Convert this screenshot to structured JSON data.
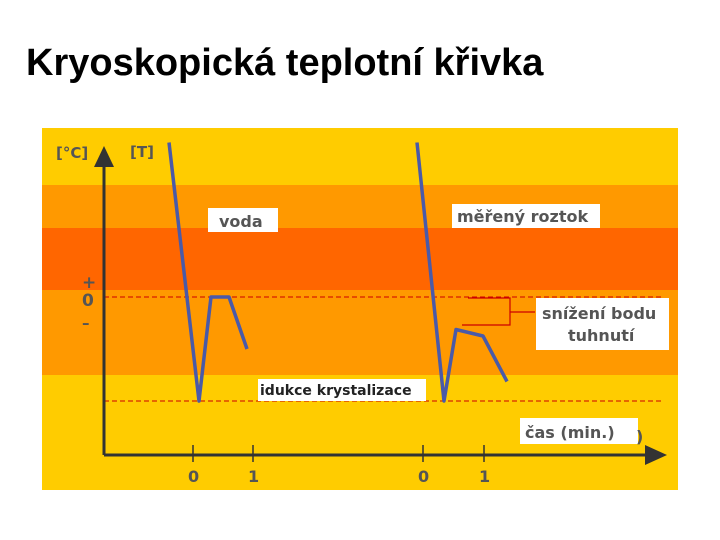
{
  "page_title": "Kryoskopická teplotní křivka",
  "colors": {
    "band_light": "#ffcc00",
    "band_mid": "#ff9900",
    "band_dark": "#ff6600",
    "curve": "#4a5aa8",
    "dashed": "#cc0000",
    "axis": "#333333",
    "text": "#555555"
  },
  "chart_data": {
    "type": "line",
    "title": "Kryoskopická teplotní křivka",
    "ylabel_unit": "[°C]",
    "ylabel_symbol": "[T]",
    "y_marks": {
      "plus": "+",
      "zero": "0",
      "minus": "–"
    },
    "xlabel": "čas (min.)",
    "xlabel_bracket": ")",
    "x_ticks_left": [
      "0",
      "1"
    ],
    "x_ticks_right": [
      "0",
      "1"
    ],
    "labels": {
      "water": "voda",
      "solution": "měřený roztok",
      "depression_line1": "snížení bodu",
      "depression_line2": "tuhnutí",
      "induction": "idukce krystalizace"
    },
    "series": [
      {
        "name": "voda",
        "x": [
          -0.4,
          0.1,
          0.3,
          0.6,
          0.9
        ],
        "y": [
          26.5,
          -1.6,
          0,
          0,
          -0.8
        ]
      },
      {
        "name": "měřený roztok",
        "x": [
          -0.1,
          0.35,
          0.55,
          1.0,
          1.4
        ],
        "y": [
          26.5,
          -1.6,
          -0.5,
          -0.6,
          -1.3
        ]
      }
    ]
  }
}
